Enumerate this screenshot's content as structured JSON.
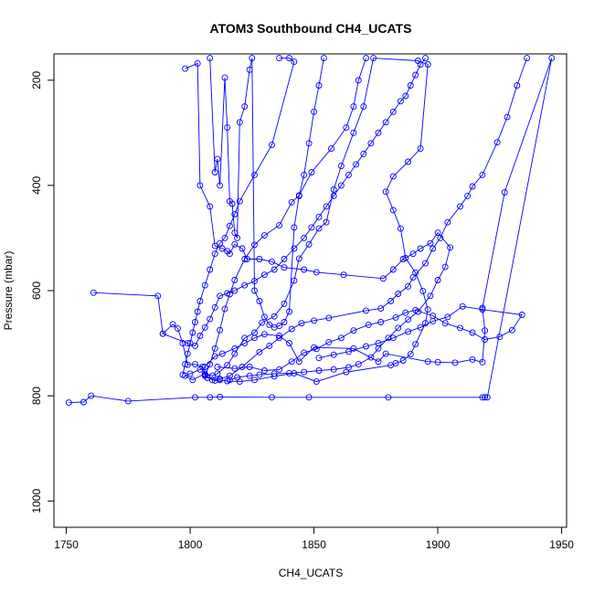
{
  "chart_data": {
    "type": "line",
    "title": "ATOM3 Southbound CH4_UCATS",
    "xlabel": "CH4_UCATS",
    "ylabel": "Pressure (mbar)",
    "xlim": [
      1745,
      1952
    ],
    "ylim": [
      1050,
      150
    ],
    "y_reversed": true,
    "x_ticks": [
      1750,
      1800,
      1850,
      1900,
      1950
    ],
    "x_tick_labels": [
      "1750",
      "1800",
      "1850",
      "1900",
      "1950"
    ],
    "y_ticks": [
      200,
      400,
      600,
      800,
      1000
    ],
    "y_tick_labels": [
      "200",
      "400",
      "600",
      "800",
      "1000"
    ],
    "grid": false,
    "legend": "none",
    "series_color": "#0000ff",
    "marker": "open-circle",
    "series": [
      {
        "points": [
          [
            1751,
            813
          ],
          [
            1757,
            812
          ],
          [
            1760,
            800
          ],
          [
            1775,
            810
          ],
          [
            1802,
            803
          ],
          [
            1808,
            803
          ],
          [
            1812,
            802
          ],
          [
            1833,
            803
          ],
          [
            1848,
            803
          ],
          [
            1880,
            803
          ],
          [
            1918,
            803
          ],
          [
            1919,
            803
          ],
          [
            1920,
            803
          ],
          [
            1946,
            158
          ],
          [
            1927,
            413
          ],
          [
            1918,
            633
          ],
          [
            1919,
            676
          ],
          [
            1918,
            736
          ],
          [
            1914,
            731
          ],
          [
            1907,
            737
          ],
          [
            1900,
            736
          ],
          [
            1896,
            735
          ],
          [
            1879,
            720
          ],
          [
            1876,
            735
          ],
          [
            1866,
            710
          ],
          [
            1850,
            708
          ],
          [
            1844,
            735
          ],
          [
            1840,
            700
          ],
          [
            1836,
            686
          ],
          [
            1830,
            683
          ],
          [
            1826,
            690
          ],
          [
            1822,
            700
          ],
          [
            1818,
            710
          ],
          [
            1813,
            720
          ],
          [
            1810,
            725
          ],
          [
            1806,
            745
          ],
          [
            1804,
            750
          ],
          [
            1800,
            758
          ],
          [
            1798,
            762
          ],
          [
            1801,
            770
          ],
          [
            1806,
            758
          ],
          [
            1809,
            762
          ],
          [
            1811,
            758
          ],
          [
            1815,
            742
          ],
          [
            1818,
            720
          ],
          [
            1822,
            690
          ],
          [
            1826,
            680
          ],
          [
            1829,
            661
          ],
          [
            1834,
            649
          ],
          [
            1838,
            625
          ],
          [
            1842,
            581
          ],
          [
            1844,
            539
          ],
          [
            1848,
            512
          ],
          [
            1852,
            482
          ],
          [
            1855,
            470
          ],
          [
            1858,
            408
          ],
          [
            1861,
            363
          ],
          [
            1866,
            300
          ],
          [
            1870,
            250
          ],
          [
            1874,
            158
          ],
          [
            1892,
            163
          ],
          [
            1896,
            170
          ],
          [
            1893,
            330
          ],
          [
            1888,
            355
          ],
          [
            1882,
            383
          ],
          [
            1879,
            412
          ],
          [
            1882,
            447
          ],
          [
            1885,
            482
          ],
          [
            1887,
            538
          ],
          [
            1891,
            566
          ],
          [
            1894,
            601
          ],
          [
            1896,
            636
          ],
          [
            1895,
            662
          ],
          [
            1891,
            702
          ],
          [
            1889,
            721
          ],
          [
            1886,
            733
          ],
          [
            1883,
            738
          ],
          [
            1881,
            742
          ],
          [
            1863,
            755
          ],
          [
            1851,
            773
          ],
          [
            1842,
            757
          ],
          [
            1834,
            763
          ],
          [
            1826,
            770
          ],
          [
            1820,
            773
          ],
          [
            1815,
            772
          ],
          [
            1812,
            770
          ],
          [
            1810,
            771
          ],
          [
            1807,
            766
          ],
          [
            1806,
            762
          ],
          [
            1808,
            740
          ],
          [
            1810,
            710
          ],
          [
            1812,
            675
          ],
          [
            1814,
            635
          ],
          [
            1816,
            607
          ],
          [
            1818,
            580
          ],
          [
            1822,
            540
          ],
          [
            1826,
            513
          ],
          [
            1830,
            495
          ],
          [
            1836,
            476
          ],
          [
            1841,
            432
          ],
          [
            1844,
            419
          ],
          [
            1849,
            375
          ],
          [
            1857,
            330
          ],
          [
            1863,
            290
          ],
          [
            1866,
            250
          ],
          [
            1868,
            200
          ],
          [
            1871,
            158
          ]
        ]
      },
      {
        "points": [
          [
            1761,
            604
          ],
          [
            1787,
            610
          ],
          [
            1789,
            682
          ],
          [
            1793,
            664
          ],
          [
            1795,
            672
          ],
          [
            1797,
            700
          ],
          [
            1799,
            741
          ],
          [
            1802,
            740
          ],
          [
            1805,
            745
          ],
          [
            1806,
            760
          ],
          [
            1809,
            770
          ],
          [
            1812,
            768
          ],
          [
            1816,
            762
          ],
          [
            1821,
            745
          ],
          [
            1828,
            717
          ],
          [
            1832,
            705
          ],
          [
            1836,
            690
          ],
          [
            1841,
            673
          ],
          [
            1845,
            662
          ],
          [
            1850,
            657
          ],
          [
            1856,
            652
          ],
          [
            1871,
            638
          ],
          [
            1877,
            634
          ],
          [
            1881,
            620
          ],
          [
            1884,
            606
          ],
          [
            1888,
            592
          ],
          [
            1890,
            575
          ],
          [
            1895,
            548
          ],
          [
            1898,
            520
          ],
          [
            1901,
            500
          ],
          [
            1904,
            470
          ],
          [
            1909,
            440
          ],
          [
            1912,
            420
          ],
          [
            1914,
            402
          ],
          [
            1918,
            380
          ],
          [
            1924,
            318
          ],
          [
            1928,
            270
          ],
          [
            1932,
            210
          ],
          [
            1936,
            158
          ]
        ]
      },
      {
        "points": [
          [
            1789,
            682
          ],
          [
            1799,
            700
          ],
          [
            1802,
            705
          ],
          [
            1804,
            686
          ],
          [
            1806,
            670
          ],
          [
            1808,
            654
          ],
          [
            1810,
            632
          ],
          [
            1812,
            610
          ],
          [
            1815,
            605
          ],
          [
            1818,
            600
          ],
          [
            1822,
            590
          ],
          [
            1826,
            582
          ],
          [
            1830,
            570
          ],
          [
            1834,
            560
          ],
          [
            1838,
            540
          ],
          [
            1842,
            520
          ],
          [
            1846,
            500
          ],
          [
            1849,
            480
          ],
          [
            1852,
            460
          ],
          [
            1855,
            440
          ],
          [
            1858,
            420
          ],
          [
            1861,
            400
          ],
          [
            1864,
            380
          ],
          [
            1867,
            360
          ],
          [
            1870,
            340
          ],
          [
            1873,
            320
          ],
          [
            1876,
            300
          ],
          [
            1879,
            280
          ],
          [
            1882,
            260
          ],
          [
            1885,
            240
          ],
          [
            1887,
            230
          ],
          [
            1889,
            210
          ],
          [
            1891,
            190
          ],
          [
            1893,
            170
          ],
          [
            1895,
            158
          ]
        ]
      },
      {
        "points": [
          [
            1798,
            178
          ],
          [
            1803,
            168
          ],
          [
            1804,
            400
          ],
          [
            1808,
            440
          ],
          [
            1810,
            515
          ],
          [
            1813,
            520
          ],
          [
            1815,
            525
          ],
          [
            1816,
            530
          ],
          [
            1818,
            512
          ],
          [
            1821,
            520
          ],
          [
            1823,
            540
          ],
          [
            1828,
            540
          ],
          [
            1833,
            545
          ],
          [
            1838,
            556
          ],
          [
            1846,
            560
          ],
          [
            1851,
            565
          ],
          [
            1862,
            570
          ],
          [
            1878,
            577
          ],
          [
            1882,
            560
          ],
          [
            1886,
            540
          ],
          [
            1890,
            530
          ],
          [
            1893,
            520
          ],
          [
            1897,
            510
          ],
          [
            1900,
            490
          ],
          [
            1905,
            518
          ],
          [
            1903,
            555
          ],
          [
            1900,
            580
          ],
          [
            1897,
            610
          ],
          [
            1892,
            640
          ],
          [
            1888,
            655
          ],
          [
            1884,
            671
          ],
          [
            1880,
            690
          ],
          [
            1876,
            710
          ],
          [
            1873,
            727
          ],
          [
            1868,
            740
          ],
          [
            1864,
            746
          ],
          [
            1858,
            750
          ],
          [
            1852,
            752
          ],
          [
            1846,
            755
          ],
          [
            1840,
            757
          ],
          [
            1834,
            758
          ],
          [
            1828,
            760
          ],
          [
            1824,
            762
          ],
          [
            1819,
            765
          ],
          [
            1816,
            770
          ]
        ]
      },
      {
        "points": [
          [
            1808,
            158
          ],
          [
            1810,
            375
          ],
          [
            1811,
            350
          ],
          [
            1812,
            400
          ],
          [
            1814,
            195
          ],
          [
            1815,
            290
          ],
          [
            1816,
            430
          ],
          [
            1817,
            435
          ],
          [
            1818,
            490
          ],
          [
            1819,
            500
          ],
          [
            1820,
            280
          ],
          [
            1822,
            250
          ],
          [
            1824,
            180
          ],
          [
            1825,
            158
          ],
          [
            1826,
            600
          ],
          [
            1828,
            620
          ],
          [
            1830,
            650
          ],
          [
            1832,
            665
          ],
          [
            1834,
            670
          ],
          [
            1836,
            667
          ],
          [
            1838,
            660
          ],
          [
            1840,
            640
          ],
          [
            1842,
            480
          ],
          [
            1844,
            420
          ],
          [
            1846,
            380
          ],
          [
            1848,
            320
          ],
          [
            1850,
            260
          ],
          [
            1852,
            210
          ],
          [
            1854,
            158
          ]
        ]
      },
      {
        "points": [
          [
            1811,
            745
          ],
          [
            1818,
            748
          ],
          [
            1824,
            745
          ],
          [
            1830,
            752
          ],
          [
            1836,
            750
          ],
          [
            1841,
            735
          ],
          [
            1846,
            718
          ],
          [
            1851,
            711
          ],
          [
            1856,
            698
          ],
          [
            1861,
            690
          ],
          [
            1866,
            676
          ],
          [
            1872,
            665
          ],
          [
            1877,
            660
          ],
          [
            1883,
            651
          ],
          [
            1887,
            642
          ],
          [
            1891,
            637
          ],
          [
            1898,
            648
          ],
          [
            1903,
            662
          ],
          [
            1909,
            671
          ],
          [
            1914,
            680
          ],
          [
            1919,
            693
          ],
          [
            1925,
            688
          ],
          [
            1930,
            675
          ],
          [
            1934,
            646
          ],
          [
            1918,
            636
          ],
          [
            1910,
            630
          ],
          [
            1904,
            650
          ],
          [
            1898,
            658
          ],
          [
            1893,
            670
          ],
          [
            1888,
            678
          ],
          [
            1882,
            690
          ],
          [
            1876,
            700
          ],
          [
            1871,
            706
          ],
          [
            1864,
            716
          ],
          [
            1858,
            722
          ],
          [
            1852,
            728
          ]
        ]
      },
      {
        "points": [
          [
            1836,
            158
          ],
          [
            1840,
            158
          ],
          [
            1842,
            165
          ],
          [
            1833,
            323
          ],
          [
            1826,
            380
          ],
          [
            1820,
            430
          ],
          [
            1818,
            455
          ],
          [
            1816,
            477
          ],
          [
            1814,
            500
          ],
          [
            1812,
            510
          ],
          [
            1810,
            530
          ],
          [
            1808,
            560
          ],
          [
            1806,
            590
          ],
          [
            1804,
            620
          ],
          [
            1803,
            640
          ],
          [
            1802,
            660
          ],
          [
            1801,
            680
          ],
          [
            1800,
            700
          ],
          [
            1799,
            720
          ],
          [
            1798,
            740
          ],
          [
            1797,
            760
          ]
        ]
      }
    ]
  }
}
